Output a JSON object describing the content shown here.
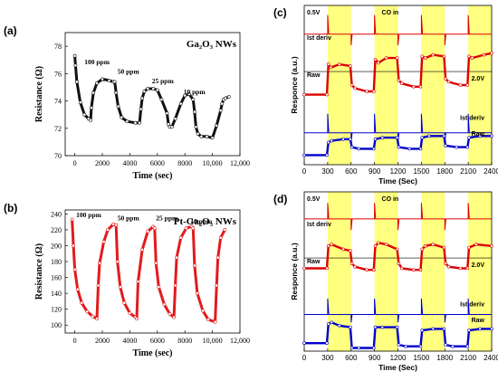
{
  "chart_data": [
    {
      "panel": "(a)",
      "type": "line",
      "title": "Ga₂O₃ NWs",
      "xlabel": "Time (sec)",
      "ylabel": "Resistance (Ω)",
      "xlim": [
        -700,
        12000
      ],
      "ylim": [
        70,
        79
      ],
      "xticks": [
        0,
        2000,
        4000,
        6000,
        8000,
        10000,
        12000
      ],
      "xtick_labels": [
        "0",
        "2000",
        "4000",
        "6000",
        "8000",
        "10,000",
        "12,000"
      ],
      "yticks": [
        70,
        72,
        74,
        76,
        78
      ],
      "color": "#111111",
      "annotations": [
        {
          "text": "100 ppm",
          "x": 700,
          "y": 76.7
        },
        {
          "text": "50 ppm",
          "x": 3100,
          "y": 76.0
        },
        {
          "text": "25 ppm",
          "x": 5600,
          "y": 75.3
        },
        {
          "text": "10 ppm",
          "x": 7900,
          "y": 74.5
        }
      ],
      "series": [
        {
          "x": [
            0,
            50,
            150,
            400,
            700,
            1000,
            1150,
            1200,
            1350,
            1600,
            2000,
            2500,
            2800,
            2900,
            3000,
            3150,
            3400,
            3800,
            4400,
            4700,
            4800,
            4900,
            5050,
            5300,
            5700,
            6000,
            6300,
            6700,
            6800,
            6900,
            7050,
            7300,
            7700,
            8000,
            8300,
            8600,
            8700,
            8800,
            8950,
            9200,
            9600,
            10000,
            10300,
            10600,
            10700,
            10800,
            10950,
            11200
          ],
          "y": [
            77.3,
            76.6,
            75.4,
            73.9,
            73.0,
            72.7,
            72.6,
            73.5,
            74.6,
            75.3,
            75.6,
            75.5,
            75.4,
            75.4,
            74.6,
            73.6,
            72.8,
            72.5,
            72.4,
            72.4,
            73.4,
            74.2,
            74.7,
            74.9,
            74.9,
            74.8,
            74.1,
            73.1,
            72.3,
            72.1,
            72.1,
            72.7,
            73.8,
            74.4,
            74.5,
            74.1,
            73.2,
            72.1,
            71.6,
            71.4,
            71.4,
            71.3,
            72.2,
            73.3,
            73.8,
            74.1,
            74.2,
            74.3
          ]
        }
      ]
    },
    {
      "panel": "(b)",
      "type": "line",
      "title": "Pt-Ga₂O₃ NWs",
      "xlabel": "Time (sec)",
      "ylabel": "Resistance (Ω)",
      "xlim": [
        -700,
        12000
      ],
      "ylim": [
        90,
        245
      ],
      "xticks": [
        0,
        2000,
        4000,
        6000,
        8000,
        10000,
        12000
      ],
      "xtick_labels": [
        "0",
        "2000",
        "4000",
        "6000",
        "8000",
        "10,000",
        "12,000"
      ],
      "yticks": [
        100,
        120,
        140,
        160,
        180,
        200,
        220,
        240
      ],
      "color": "#e31a1c",
      "annotations": [
        {
          "text": "100 ppm",
          "x": 100,
          "y": 236
        },
        {
          "text": "50 ppm",
          "x": 3100,
          "y": 232
        },
        {
          "text": "25 ppm",
          "x": 5900,
          "y": 232
        },
        {
          "text": "10 ppm",
          "x": 8400,
          "y": 228
        }
      ],
      "series": [
        {
          "x": [
            -200,
            -100,
            0,
            200,
            500,
            900,
            1300,
            1600,
            1700,
            1800,
            2100,
            2400,
            2800,
            3000,
            3100,
            3300,
            3600,
            4000,
            4400,
            4500,
            4600,
            4900,
            5300,
            5700,
            5800,
            5900,
            6100,
            6500,
            6900,
            7200,
            7300,
            7400,
            7700,
            8100,
            8500,
            8600,
            8700,
            8900,
            9300,
            9700,
            10200,
            10300,
            10400,
            10600,
            10900
          ],
          "y": [
            233,
            200,
            170,
            145,
            128,
            117,
            111,
            108,
            150,
            178,
            205,
            220,
            227,
            226,
            180,
            148,
            128,
            115,
            110,
            108,
            155,
            195,
            218,
            224,
            222,
            178,
            148,
            126,
            114,
            110,
            150,
            185,
            210,
            222,
            224,
            222,
            175,
            140,
            118,
            107,
            104,
            150,
            185,
            210,
            220
          ]
        }
      ]
    },
    {
      "panel": "(c)",
      "type": "line",
      "xlabel": "Time (Sec)",
      "ylabel": "Responce (a.u.)",
      "xlim": [
        0,
        2400
      ],
      "xticks": [
        0,
        300,
        600,
        900,
        1200,
        1500,
        1800,
        2100,
        2400
      ],
      "shaded_intervals": [
        [
          300,
          600
        ],
        [
          900,
          1200
        ],
        [
          1500,
          1800
        ],
        [
          2100,
          2400
        ]
      ],
      "shade_color": "#ffff80",
      "labels": [
        "0.5V",
        "CO in",
        "Ist deriv",
        "Raw",
        "2.0V",
        "Ist deriv",
        "Raw"
      ],
      "series": [
        {
          "name": "Ist deriv (0.5V)",
          "color": "#dd0000",
          "baseline": 0.82,
          "spikes": [
            [
              300,
              0.12
            ],
            [
              600,
              -0.07
            ],
            [
              900,
              0.12
            ],
            [
              1200,
              -0.07
            ],
            [
              1500,
              0.12
            ],
            [
              1800,
              -0.07
            ],
            [
              2100,
              0.12
            ]
          ]
        },
        {
          "name": "Raw (0.5V)",
          "color": "#dd0000",
          "x": [
            0,
            290,
            310,
            340,
            450,
            590,
            610,
            650,
            800,
            890,
            910,
            950,
            1050,
            1190,
            1210,
            1250,
            1400,
            1490,
            1510,
            1550,
            1650,
            1790,
            1810,
            1850,
            2000,
            2090,
            2110,
            2150,
            2300,
            2400
          ],
          "y": [
            0.44,
            0.44,
            0.63,
            0.61,
            0.63,
            0.62,
            0.5,
            0.48,
            0.46,
            0.46,
            0.66,
            0.64,
            0.67,
            0.67,
            0.53,
            0.51,
            0.49,
            0.49,
            0.68,
            0.67,
            0.69,
            0.68,
            0.54,
            0.52,
            0.5,
            0.5,
            0.68,
            0.67,
            0.69,
            0.7
          ]
        },
        {
          "name": "Ist deriv (2.0V)",
          "color": "#0000cc",
          "baseline": 0.2,
          "spikes": [
            [
              300,
              0.12
            ],
            [
              600,
              -0.06
            ],
            [
              900,
              0.12
            ],
            [
              1200,
              -0.06
            ],
            [
              1500,
              0.12
            ],
            [
              1800,
              -0.06
            ],
            [
              2100,
              0.12
            ]
          ]
        },
        {
          "name": "Raw (2.0V)",
          "color": "#0000cc",
          "x": [
            0,
            290,
            310,
            350,
            500,
            590,
            610,
            700,
            890,
            910,
            1000,
            1190,
            1210,
            1350,
            1490,
            1510,
            1600,
            1790,
            1810,
            1950,
            2090,
            2110,
            2250,
            2400
          ],
          "y": [
            0.06,
            0.06,
            0.14,
            0.15,
            0.16,
            0.16,
            0.11,
            0.1,
            0.1,
            0.16,
            0.17,
            0.17,
            0.11,
            0.1,
            0.1,
            0.17,
            0.18,
            0.18,
            0.12,
            0.11,
            0.11,
            0.17,
            0.18,
            0.18
          ]
        }
      ]
    },
    {
      "panel": "(d)",
      "type": "line",
      "xlabel": "Time (Sec)",
      "ylabel": "Responce (a.u.)",
      "xlim": [
        0,
        2400
      ],
      "xticks": [
        0,
        300,
        600,
        900,
        1200,
        1500,
        1800,
        2100,
        2400
      ],
      "shaded_intervals": [
        [
          300,
          600
        ],
        [
          900,
          1200
        ],
        [
          1500,
          1800
        ],
        [
          2100,
          2400
        ]
      ],
      "shade_color": "#ffff80",
      "labels": [
        "0.5V",
        "CO in",
        "Ist deriv",
        "Raw",
        "2.0V",
        "Ist deriv",
        "Raw"
      ],
      "series": [
        {
          "name": "Ist deriv (0.5V)",
          "color": "#dd0000",
          "baseline": 0.83,
          "spikes": [
            [
              300,
              0.1
            ],
            [
              600,
              -0.07
            ],
            [
              900,
              0.1
            ],
            [
              1200,
              -0.07
            ],
            [
              1500,
              0.1
            ],
            [
              1800,
              -0.07
            ],
            [
              2100,
              0.1
            ]
          ]
        },
        {
          "name": "Raw (0.5V)",
          "color": "#dd0000",
          "x": [
            0,
            290,
            310,
            350,
            500,
            590,
            610,
            650,
            800,
            890,
            910,
            950,
            1050,
            1190,
            1210,
            1250,
            1400,
            1490,
            1510,
            1550,
            1650,
            1790,
            1810,
            1850,
            2000,
            2090,
            2110,
            2200,
            2400
          ],
          "y": [
            0.52,
            0.52,
            0.66,
            0.67,
            0.64,
            0.63,
            0.55,
            0.53,
            0.51,
            0.51,
            0.66,
            0.68,
            0.67,
            0.64,
            0.55,
            0.52,
            0.51,
            0.51,
            0.64,
            0.66,
            0.67,
            0.65,
            0.55,
            0.53,
            0.52,
            0.52,
            0.65,
            0.67,
            0.66
          ]
        },
        {
          "name": "Ist deriv (2.0V)",
          "color": "#0000cc",
          "baseline": 0.23,
          "spikes": [
            [
              300,
              0.1
            ],
            [
              600,
              -0.05
            ],
            [
              900,
              0.1
            ],
            [
              1200,
              -0.05
            ],
            [
              1500,
              0.1
            ],
            [
              1800,
              -0.05
            ],
            [
              2100,
              0.1
            ]
          ]
        },
        {
          "name": "Raw (2.0V)",
          "color": "#0000cc",
          "x": [
            0,
            290,
            310,
            350,
            450,
            590,
            610,
            700,
            890,
            910,
            1000,
            1190,
            1210,
            1300,
            1490,
            1510,
            1650,
            1790,
            1810,
            1900,
            2090,
            2110,
            2250,
            2400
          ],
          "y": [
            0.05,
            0.05,
            0.17,
            0.18,
            0.16,
            0.15,
            0.02,
            0.02,
            0.02,
            0.15,
            0.15,
            0.15,
            0.04,
            0.03,
            0.03,
            0.13,
            0.14,
            0.14,
            0.04,
            0.03,
            0.03,
            0.13,
            0.14,
            0.14
          ]
        }
      ]
    }
  ]
}
